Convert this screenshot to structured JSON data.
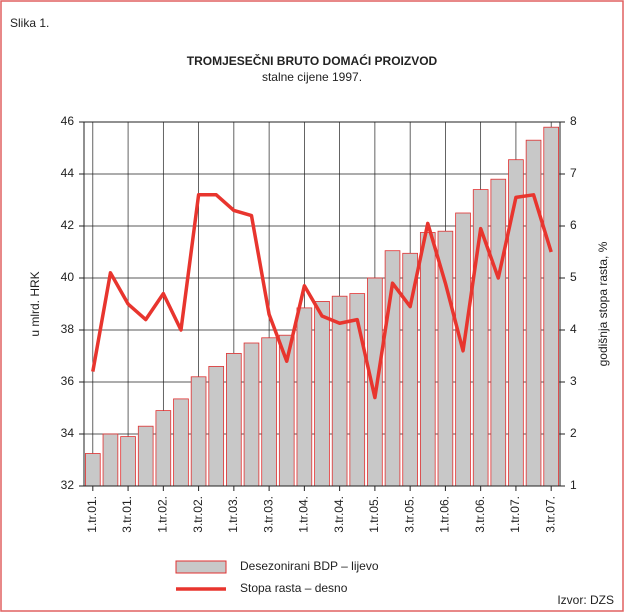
{
  "chart_data": {
    "type": "bar_line",
    "label": "Slika 1.",
    "title": "TROMJESEČNI BRUTO DOMAĆI PROIZVOD",
    "subtitle": "stalne cijene 1997.",
    "ylabel": "u mlrd. HRK",
    "y2label": "godišnja stopa rasta, %",
    "source": "Izvor: DZS",
    "categories": [
      "1.tr.01.",
      null,
      "3.tr.01.",
      null,
      "1.tr.02.",
      null,
      "3.tr.02.",
      null,
      "1.tr.03.",
      null,
      "3.tr.03.",
      null,
      "1.tr.04.",
      null,
      "3.tr.04.",
      null,
      "1.tr.05.",
      null,
      "3.tr.05.",
      null,
      "1.tr.06.",
      null,
      "3.tr.06.",
      null,
      "1.tr.07.",
      null,
      "3.tr.07."
    ],
    "series": [
      {
        "name": "Desezonirani BDP – lijevo",
        "type": "bar",
        "color": "#c8c8c8",
        "edge_color": "#e03030",
        "values": [
          33.25,
          34.0,
          33.9,
          34.3,
          34.9,
          35.35,
          36.2,
          36.6,
          37.1,
          37.5,
          37.7,
          37.8,
          38.85,
          39.1,
          39.3,
          39.4,
          40.0,
          41.05,
          40.95,
          41.75,
          41.8,
          42.5,
          43.4,
          43.8,
          44.55,
          45.3,
          45.8
        ]
      },
      {
        "name": "Stopa rasta – desno",
        "type": "line",
        "axis": "y2",
        "color": "#e8352e",
        "values": [
          3.2,
          5.1,
          4.5,
          4.2,
          4.7,
          4.0,
          6.6,
          6.6,
          6.3,
          6.2,
          4.3,
          3.4,
          4.85,
          4.27,
          4.13,
          4.2,
          2.7,
          4.9,
          4.45,
          6.05,
          4.9,
          3.6,
          5.95,
          5.0,
          6.55,
          6.6,
          5.5
        ]
      }
    ],
    "ylim": [
      32,
      46
    ],
    "yticks": [
      32,
      34,
      36,
      38,
      40,
      42,
      44,
      46
    ],
    "y2lim": [
      1,
      8
    ],
    "y2ticks": [
      1,
      2,
      3,
      4,
      5,
      6,
      7,
      8
    ],
    "grid": true
  }
}
